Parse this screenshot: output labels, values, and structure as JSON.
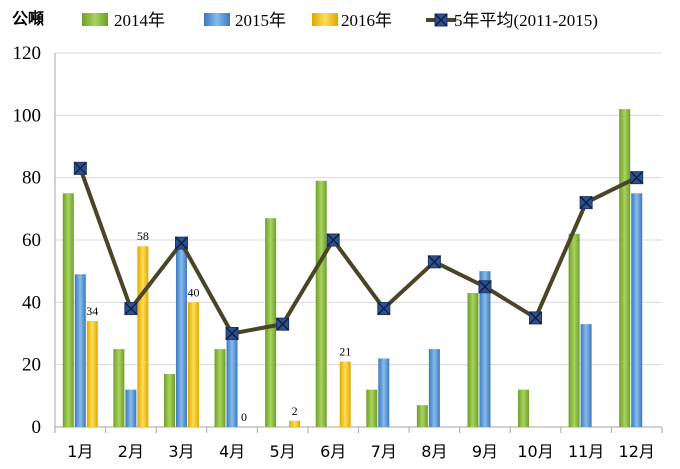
{
  "chart_data": {
    "type": "bar",
    "unit_label": "公噸",
    "categories": [
      "1月",
      "2月",
      "3月",
      "4月",
      "5月",
      "6月",
      "7月",
      "8月",
      "9月",
      "10月",
      "11月",
      "12月"
    ],
    "ylim": [
      0,
      120
    ],
    "yticks": [
      0,
      20,
      40,
      60,
      80,
      100,
      120
    ],
    "grid": true,
    "legend_position": "top",
    "series": [
      {
        "name": "2014年",
        "type": "bar",
        "color": "#8DC63F",
        "values": [
          75,
          25,
          17,
          25,
          67,
          79,
          12,
          7,
          43,
          12,
          62,
          102
        ]
      },
      {
        "name": "2015年",
        "type": "bar",
        "color": "#5B9BD5",
        "values": [
          49,
          12,
          59,
          30,
          null,
          null,
          22,
          25,
          50,
          null,
          33,
          75
        ]
      },
      {
        "name": "2016年",
        "type": "bar",
        "color": "#FFC000",
        "values": [
          34,
          58,
          40,
          0,
          2,
          21,
          null,
          null,
          null,
          null,
          null,
          null
        ]
      },
      {
        "name": "5年平均(2011-2015)",
        "type": "line",
        "color": "#4A4526",
        "marker_color": "#2F4F8F",
        "values": [
          83,
          38,
          59,
          30,
          33,
          60,
          38,
          53,
          45,
          35,
          72,
          80
        ]
      }
    ],
    "data_labels": {
      "series": "2016年",
      "items": [
        {
          "index": 0,
          "text": "34"
        },
        {
          "index": 1,
          "text": "58"
        },
        {
          "index": 2,
          "text": "40"
        },
        {
          "index": 3,
          "text": "0"
        },
        {
          "index": 4,
          "text": "2"
        },
        {
          "index": 5,
          "text": "21"
        }
      ]
    }
  }
}
